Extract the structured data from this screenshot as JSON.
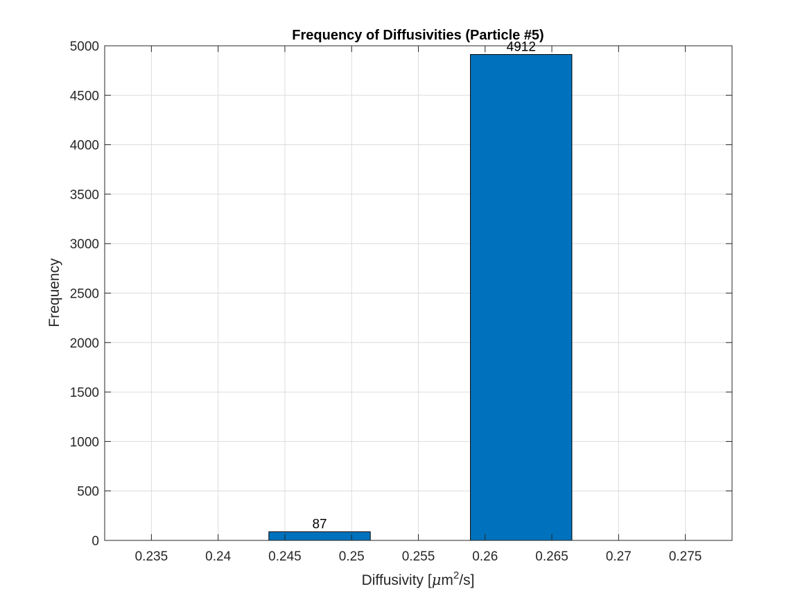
{
  "chart_data": {
    "type": "bar",
    "title": "Frequency of Diffusivities (Particle #5)",
    "xlabel": "Diffusivity [μm²/s]",
    "xlabel_parts": {
      "pre": "Diffusivity [",
      "mu": "μ",
      "m": "m",
      "sup": "2",
      "post": "/s]"
    },
    "ylabel": "Frequency",
    "xlim": [
      0.2315,
      0.2785
    ],
    "ylim": [
      0,
      5000
    ],
    "xticks": [
      0.235,
      0.24,
      0.245,
      0.25,
      0.255,
      0.26,
      0.265,
      0.27,
      0.275
    ],
    "xtick_labels": [
      "0.235",
      "0.24",
      "0.245",
      "0.25",
      "0.255",
      "0.26",
      "0.265",
      "0.27",
      "0.275"
    ],
    "yticks": [
      0,
      500,
      1000,
      1500,
      2000,
      2500,
      3000,
      3500,
      4000,
      4500,
      5000
    ],
    "ytick_labels": [
      "0",
      "500",
      "1000",
      "1500",
      "2000",
      "2500",
      "3000",
      "3500",
      "4000",
      "4500",
      "5000"
    ],
    "grid": true,
    "bars": [
      {
        "x0": 0.2438,
        "x1": 0.2514,
        "value": 87,
        "label": "87"
      },
      {
        "x0": 0.2589,
        "x1": 0.2665,
        "value": 4912,
        "label": "4912"
      }
    ],
    "bar_color": "#0072BD"
  }
}
